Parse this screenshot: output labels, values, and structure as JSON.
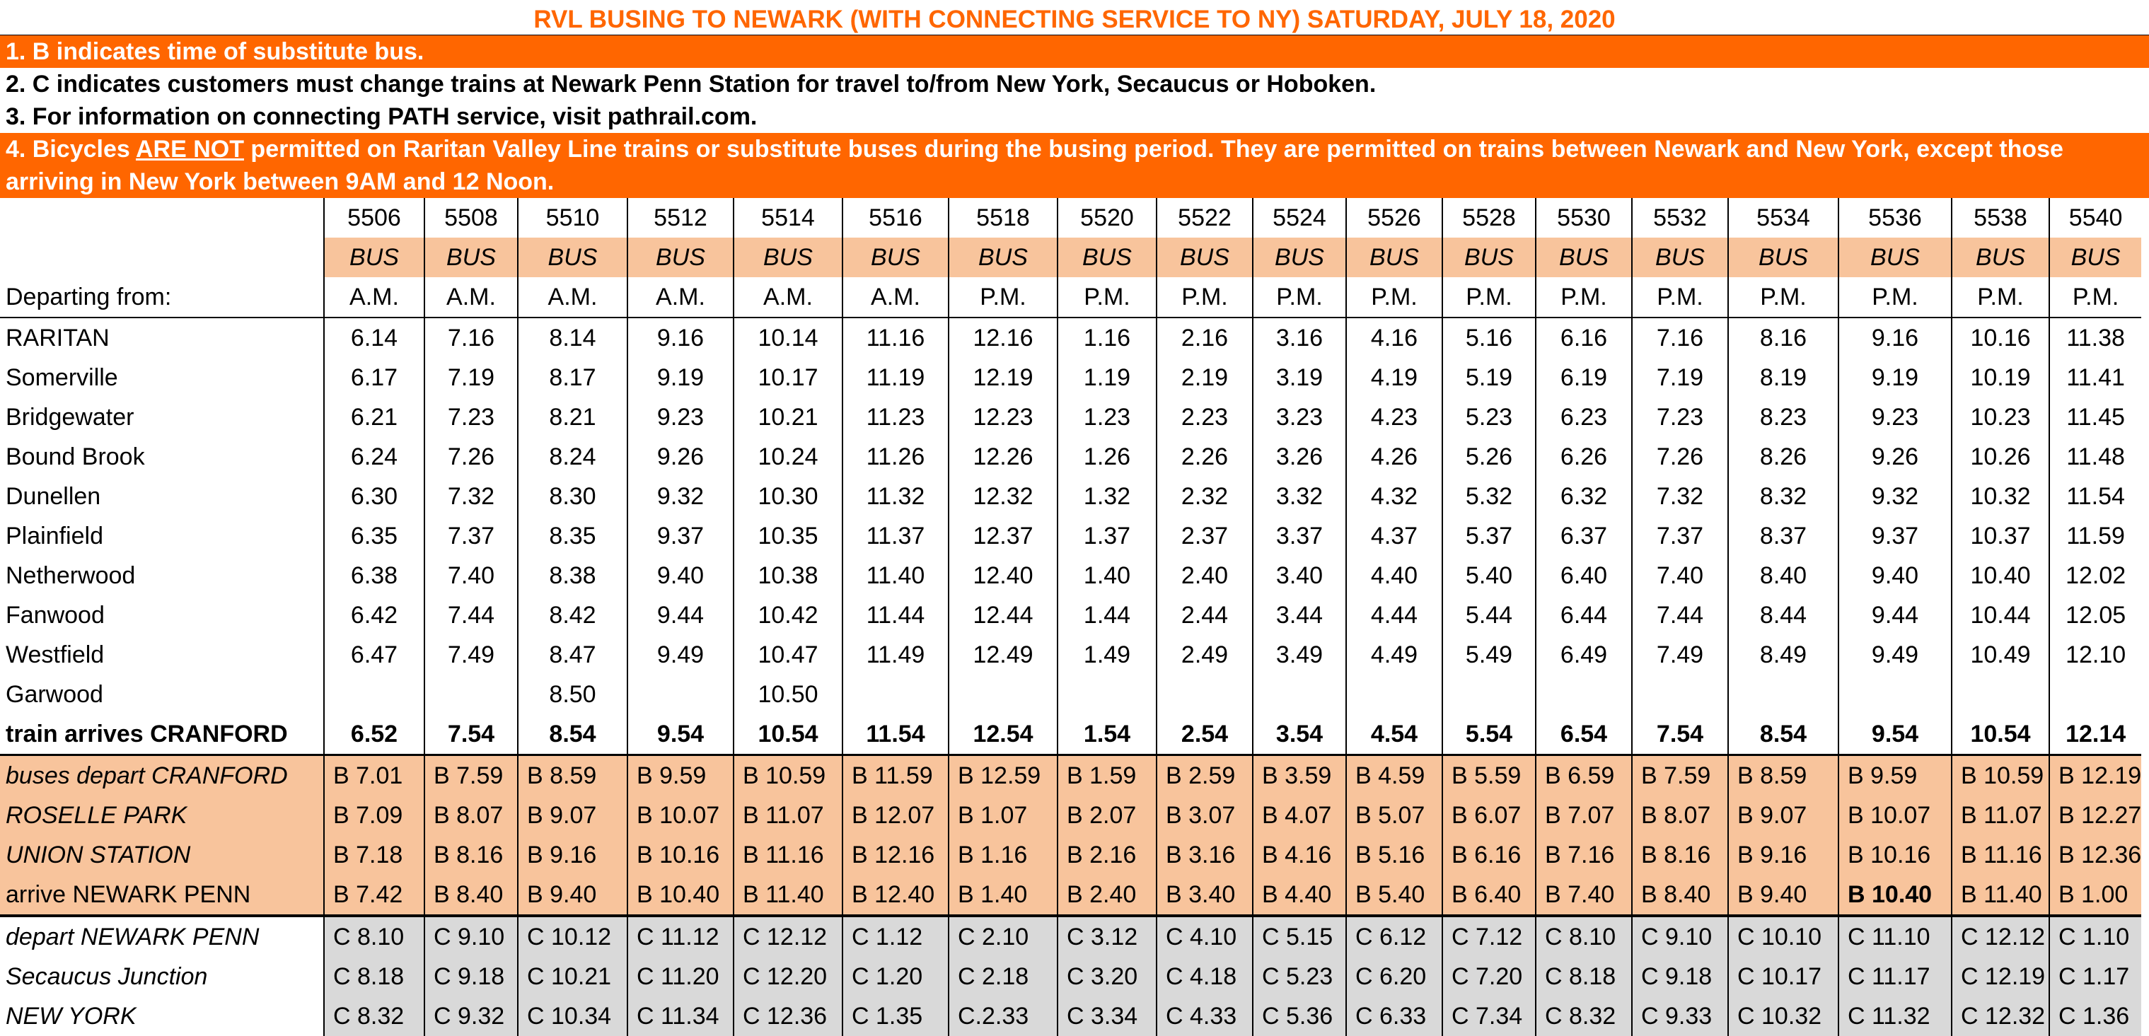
{
  "title": "RVL BUSING TO NEWARK (WITH CONNECTING SERVICE TO NY) SATURDAY, JULY 18, 2020",
  "notes": {
    "n1": "1. B indicates time of substitute bus.",
    "n2": "2. C indicates customers must change trains at Newark Penn Station for travel to/from New York, Secaucus or Hoboken.",
    "n3": "3. For information on connecting PATH service, visit pathrail.com.",
    "n4_pre": "4. Bicycles ",
    "n4_under": "ARE NOT",
    "n4_post": " permitted on Raritan Valley Line trains or substitute buses during the busing period. They are permitted on trains between Newark and New York, except those arriving in New York between 9AM and 12 Noon."
  },
  "colors": {
    "accent": "#ff6600",
    "bus_fill": "#f8c49c",
    "connect_fill": "#d9d9d9"
  },
  "trains": [
    "5506",
    "5508",
    "5510",
    "5512",
    "5514",
    "5516",
    "5518",
    "5520",
    "5522",
    "5524",
    "5526",
    "5528",
    "5530",
    "5532",
    "5534",
    "5536",
    "5538",
    "5540"
  ],
  "mode": "BUS",
  "departing_label": "Departing from:",
  "ampm": [
    "A.M.",
    "A.M.",
    "A.M.",
    "A.M.",
    "A.M.",
    "A.M.",
    "P.M.",
    "P.M.",
    "P.M.",
    "P.M.",
    "P.M.",
    "P.M.",
    "P.M.",
    "P.M.",
    "P.M.",
    "P.M.",
    "P.M.",
    "P.M."
  ],
  "stations": [
    {
      "name": "RARITAN",
      "times": [
        "6.14",
        "7.16",
        "8.14",
        "9.16",
        "10.14",
        "11.16",
        "12.16",
        "1.16",
        "2.16",
        "3.16",
        "4.16",
        "5.16",
        "6.16",
        "7.16",
        "8.16",
        "9.16",
        "10.16",
        "11.38"
      ]
    },
    {
      "name": "Somerville",
      "times": [
        "6.17",
        "7.19",
        "8.17",
        "9.19",
        "10.17",
        "11.19",
        "12.19",
        "1.19",
        "2.19",
        "3.19",
        "4.19",
        "5.19",
        "6.19",
        "7.19",
        "8.19",
        "9.19",
        "10.19",
        "11.41"
      ]
    },
    {
      "name": "Bridgewater",
      "times": [
        "6.21",
        "7.23",
        "8.21",
        "9.23",
        "10.21",
        "11.23",
        "12.23",
        "1.23",
        "2.23",
        "3.23",
        "4.23",
        "5.23",
        "6.23",
        "7.23",
        "8.23",
        "9.23",
        "10.23",
        "11.45"
      ]
    },
    {
      "name": "Bound Brook",
      "times": [
        "6.24",
        "7.26",
        "8.24",
        "9.26",
        "10.24",
        "11.26",
        "12.26",
        "1.26",
        "2.26",
        "3.26",
        "4.26",
        "5.26",
        "6.26",
        "7.26",
        "8.26",
        "9.26",
        "10.26",
        "11.48"
      ]
    },
    {
      "name": "Dunellen",
      "times": [
        "6.30",
        "7.32",
        "8.30",
        "9.32",
        "10.30",
        "11.32",
        "12.32",
        "1.32",
        "2.32",
        "3.32",
        "4.32",
        "5.32",
        "6.32",
        "7.32",
        "8.32",
        "9.32",
        "10.32",
        "11.54"
      ]
    },
    {
      "name": "Plainfield",
      "times": [
        "6.35",
        "7.37",
        "8.35",
        "9.37",
        "10.35",
        "11.37",
        "12.37",
        "1.37",
        "2.37",
        "3.37",
        "4.37",
        "5.37",
        "6.37",
        "7.37",
        "8.37",
        "9.37",
        "10.37",
        "11.59"
      ]
    },
    {
      "name": "Netherwood",
      "times": [
        "6.38",
        "7.40",
        "8.38",
        "9.40",
        "10.38",
        "11.40",
        "12.40",
        "1.40",
        "2.40",
        "3.40",
        "4.40",
        "5.40",
        "6.40",
        "7.40",
        "8.40",
        "9.40",
        "10.40",
        "12.02"
      ]
    },
    {
      "name": "Fanwood",
      "times": [
        "6.42",
        "7.44",
        "8.42",
        "9.44",
        "10.42",
        "11.44",
        "12.44",
        "1.44",
        "2.44",
        "3.44",
        "4.44",
        "5.44",
        "6.44",
        "7.44",
        "8.44",
        "9.44",
        "10.44",
        "12.05"
      ]
    },
    {
      "name": "Westfield",
      "times": [
        "6.47",
        "7.49",
        "8.47",
        "9.49",
        "10.47",
        "11.49",
        "12.49",
        "1.49",
        "2.49",
        "3.49",
        "4.49",
        "5.49",
        "6.49",
        "7.49",
        "8.49",
        "9.49",
        "10.49",
        "12.10"
      ]
    },
    {
      "name": "Garwood",
      "times": [
        "",
        "",
        "8.50",
        "",
        "10.50",
        "",
        "",
        "",
        "",
        "",
        "",
        "",
        "",
        "",
        "",
        "",
        "",
        ""
      ]
    }
  ],
  "cranford_arrival": {
    "name": "train arrives CRANFORD",
    "times": [
      "6.52",
      "7.54",
      "8.54",
      "9.54",
      "10.54",
      "11.54",
      "12.54",
      "1.54",
      "2.54",
      "3.54",
      "4.54",
      "5.54",
      "6.54",
      "7.54",
      "8.54",
      "9.54",
      "10.54",
      "12.14"
    ]
  },
  "bus_rows": [
    {
      "name": "buses depart CRANFORD",
      "italic": true,
      "times": [
        "B 7.01",
        "B 7.59",
        "B 8.59",
        "B 9.59",
        "B 10.59",
        "B 11.59",
        "B 12.59",
        "B 1.59",
        "B 2.59",
        "B 3.59",
        "B 4.59",
        "B 5.59",
        "B 6.59",
        "B 7.59",
        "B 8.59",
        "B 9.59",
        "B 10.59",
        "B 12.19"
      ]
    },
    {
      "name": "ROSELLE PARK",
      "italic": true,
      "times": [
        "B 7.09",
        "B 8.07",
        "B 9.07",
        "B 10.07",
        "B 11.07",
        "B 12.07",
        "B 1.07",
        "B 2.07",
        "B 3.07",
        "B 4.07",
        "B 5.07",
        "B 6.07",
        "B 7.07",
        "B 8.07",
        "B 9.07",
        "B 10.07",
        "B 11.07",
        "B 12.27"
      ]
    },
    {
      "name": "UNION STATION",
      "italic": true,
      "times": [
        "B 7.18",
        "B 8.16",
        "B 9.16",
        "B 10.16",
        "B 11.16",
        "B 12.16",
        "B 1.16",
        "B 2.16",
        "B 3.16",
        "B 4.16",
        "B 5.16",
        "B 6.16",
        "B 7.16",
        "B 8.16",
        "B 9.16",
        "B 10.16",
        "B 11.16",
        "B 12.36"
      ]
    },
    {
      "name": "arrive NEWARK PENN",
      "italic": false,
      "times": [
        "B 7.42",
        "B 8.40",
        "B 9.40",
        "B 10.40",
        "B 11.40",
        "B 12.40",
        "B 1.40",
        "B 2.40",
        "B 3.40",
        "B 4.40",
        "B 5.40",
        "B 6.40",
        "B 7.40",
        "B 8.40",
        "B 9.40",
        "B 10.40",
        "B 11.40",
        "B 1.00"
      ]
    }
  ],
  "connect_rows": [
    {
      "name": "depart NEWARK PENN",
      "times": [
        "C 8.10",
        "C 9.10",
        "C 10.12",
        "C 11.12",
        "C 12.12",
        "C 1.12",
        "C 2.10",
        "C 3.12",
        "C 4.10",
        "C 5.15",
        "C 6.12",
        "C 7.12",
        "C 8.10",
        "C 9.10",
        "C 10.10",
        "C 11.10",
        "C 12.12",
        "C 1.10"
      ]
    },
    {
      "name": "Secaucus Junction",
      "times": [
        "C 8.18",
        "C 9.18",
        "C 10.21",
        "C 11.20",
        "C 12.20",
        "C 1.20",
        "C 2.18",
        "C 3.20",
        "C 4.18",
        "C 5.23",
        "C 6.20",
        "C 7.20",
        "C 8.18",
        "C 9.18",
        "C 10.17",
        "C 11.17",
        "C 12.19",
        "C 1.17"
      ]
    },
    {
      "name": "NEW YORK",
      "times": [
        "C 8.32",
        "C 9.32",
        "C 10.34",
        "C 11.34",
        "C 12.36",
        "C 1.35",
        "C.2.33",
        "C 3.34",
        "C 4.33",
        "C 5.36",
        "C 6.33",
        "C 7.34",
        "C 8.32",
        "C 9.33",
        "C 10.32",
        "C 11.32",
        "C 12.32",
        "C 1.36"
      ]
    }
  ]
}
